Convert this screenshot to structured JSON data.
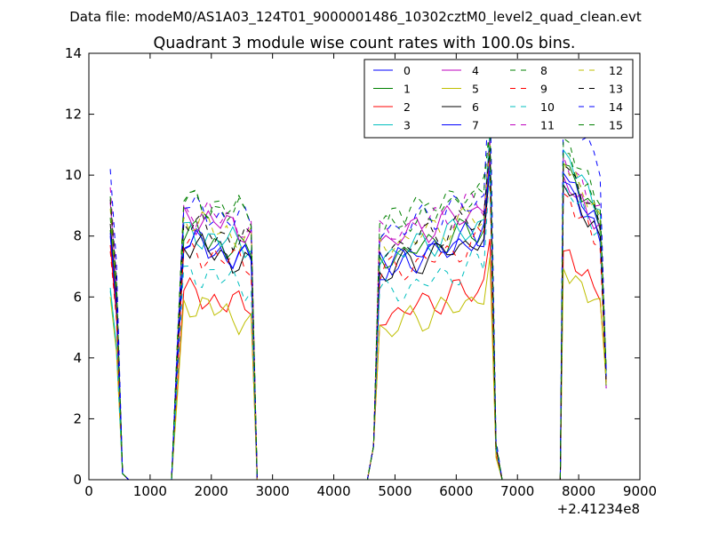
{
  "chart_data": {
    "type": "line",
    "suptitle": "Data file: modeM0/AS1A03_124T01_9000001486_10302cztM0_level2_quad_clean.evt",
    "title": "Quadrant 3 module wise count rates with 100.0s bins.",
    "xlabel": "",
    "ylabel": "",
    "x_offset_label": "+2.41234e8",
    "xlim": [
      0,
      9000
    ],
    "ylim": [
      0,
      14
    ],
    "xticks": [
      0,
      1000,
      2000,
      3000,
      4000,
      5000,
      6000,
      7000,
      8000,
      9000
    ],
    "yticks": [
      0,
      2,
      4,
      6,
      8,
      10,
      12,
      14
    ],
    "xtick_labels": [
      "0",
      "1000",
      "2000",
      "3000",
      "4000",
      "5000",
      "6000",
      "7000",
      "8000",
      "9000"
    ],
    "ytick_labels": [
      "0",
      "2",
      "4",
      "6",
      "8",
      "10",
      "12",
      "14"
    ],
    "grid": false,
    "legend_position": "top-right",
    "legend_columns": 4,
    "time_bins": [
      350,
      450,
      550,
      650,
      1350,
      1450,
      1550,
      1650,
      1750,
      1850,
      1950,
      2050,
      2150,
      2250,
      2350,
      2450,
      2550,
      2650,
      2750,
      4550,
      4650,
      4750,
      4850,
      4950,
      5050,
      5150,
      5250,
      5350,
      5450,
      5550,
      5650,
      5750,
      5850,
      5950,
      6050,
      6150,
      6250,
      6350,
      6450,
      6550,
      6650,
      6750,
      7750,
      7850,
      7950,
      8050,
      8150,
      8250,
      8350,
      8450
    ],
    "series": [
      {
        "name": "0",
        "color": "#0000ff",
        "dash": "solid",
        "level": 7.3,
        "peak": 10.6,
        "start": 8.0
      },
      {
        "name": "1",
        "color": "#008000",
        "dash": "solid",
        "level": 7.5,
        "peak": 10.9,
        "start": 8.2
      },
      {
        "name": "2",
        "color": "#ff0000",
        "dash": "solid",
        "level": 5.6,
        "peak": 7.9,
        "start": 7.7
      },
      {
        "name": "3",
        "color": "#00bfbf",
        "dash": "solid",
        "level": 7.6,
        "peak": 11.4,
        "start": 6.3
      },
      {
        "name": "4",
        "color": "#bf00bf",
        "dash": "solid",
        "level": 8.1,
        "peak": 10.5,
        "start": 9.1
      },
      {
        "name": "5",
        "color": "#bfbf00",
        "dash": "solid",
        "level": 5.2,
        "peak": 7.3,
        "start": 6.0
      },
      {
        "name": "6",
        "color": "#000000",
        "dash": "solid",
        "level": 7.1,
        "peak": 10.2,
        "start": 8.4
      },
      {
        "name": "7",
        "color": "#0000ff",
        "dash": "solid",
        "level": 7.2,
        "peak": 10.3,
        "start": 8.1
      },
      {
        "name": "8",
        "color": "#008000",
        "dash": "dashed",
        "level": 8.6,
        "peak": 11.3,
        "start": 8.6
      },
      {
        "name": "9",
        "color": "#ff0000",
        "dash": "dashed",
        "level": 7.0,
        "peak": 9.9,
        "start": 7.5
      },
      {
        "name": "10",
        "color": "#00bfbf",
        "dash": "dashed",
        "level": 6.3,
        "peak": 10.3,
        "start": 6.2
      },
      {
        "name": "11",
        "color": "#bf00bf",
        "dash": "dashed",
        "level": 8.3,
        "peak": 11.2,
        "start": 9.6
      },
      {
        "name": "12",
        "color": "#bfbf00",
        "dash": "dashed",
        "level": 7.9,
        "peak": 11.0,
        "start": 8.9
      },
      {
        "name": "13",
        "color": "#000000",
        "dash": "dashed",
        "level": 7.8,
        "peak": 10.9,
        "start": 9.2
      },
      {
        "name": "14",
        "color": "#0000ff",
        "dash": "dashed",
        "level": 8.4,
        "peak": 13.2,
        "start": 10.2
      },
      {
        "name": "15",
        "color": "#008000",
        "dash": "dashed",
        "level": 8.7,
        "peak": 11.8,
        "start": 9.3
      }
    ]
  }
}
